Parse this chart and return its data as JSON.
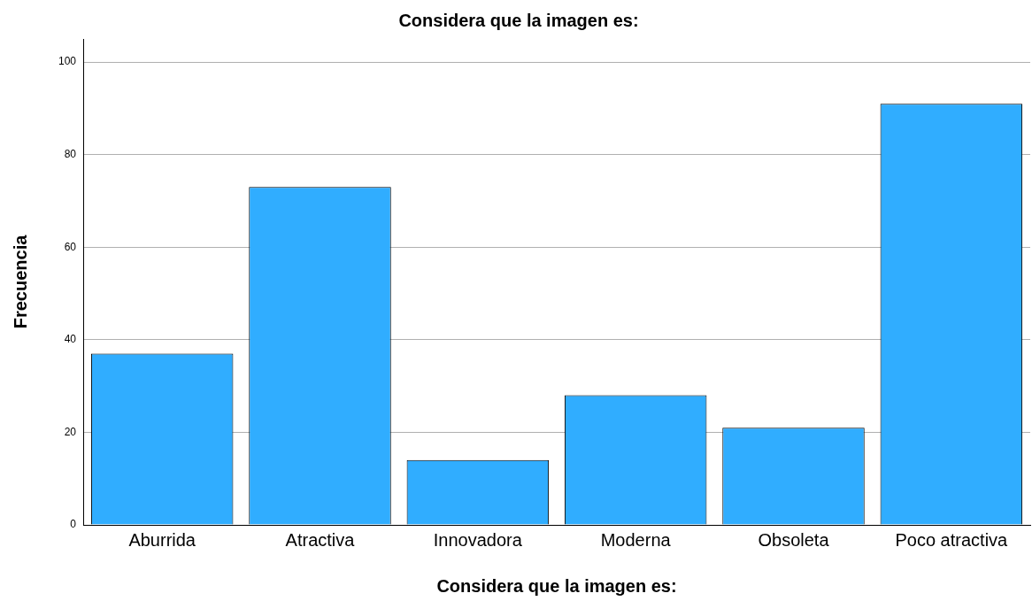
{
  "chart_data": {
    "type": "bar",
    "title": "Considera que la imagen es:",
    "xlabel": "Considera que la imagen es:",
    "ylabel": "Frecuencia",
    "categories": [
      "Aburrida",
      "Atractiva",
      "Innovadora",
      "Moderna",
      "Obsoleta",
      "Poco atractiva"
    ],
    "values": [
      37,
      73,
      14,
      28,
      21,
      91
    ],
    "color": "#30adff",
    "ylim": [
      0,
      105
    ],
    "yticks": [
      0,
      20,
      40,
      60,
      80,
      100
    ],
    "grid": "y",
    "legend": false
  }
}
